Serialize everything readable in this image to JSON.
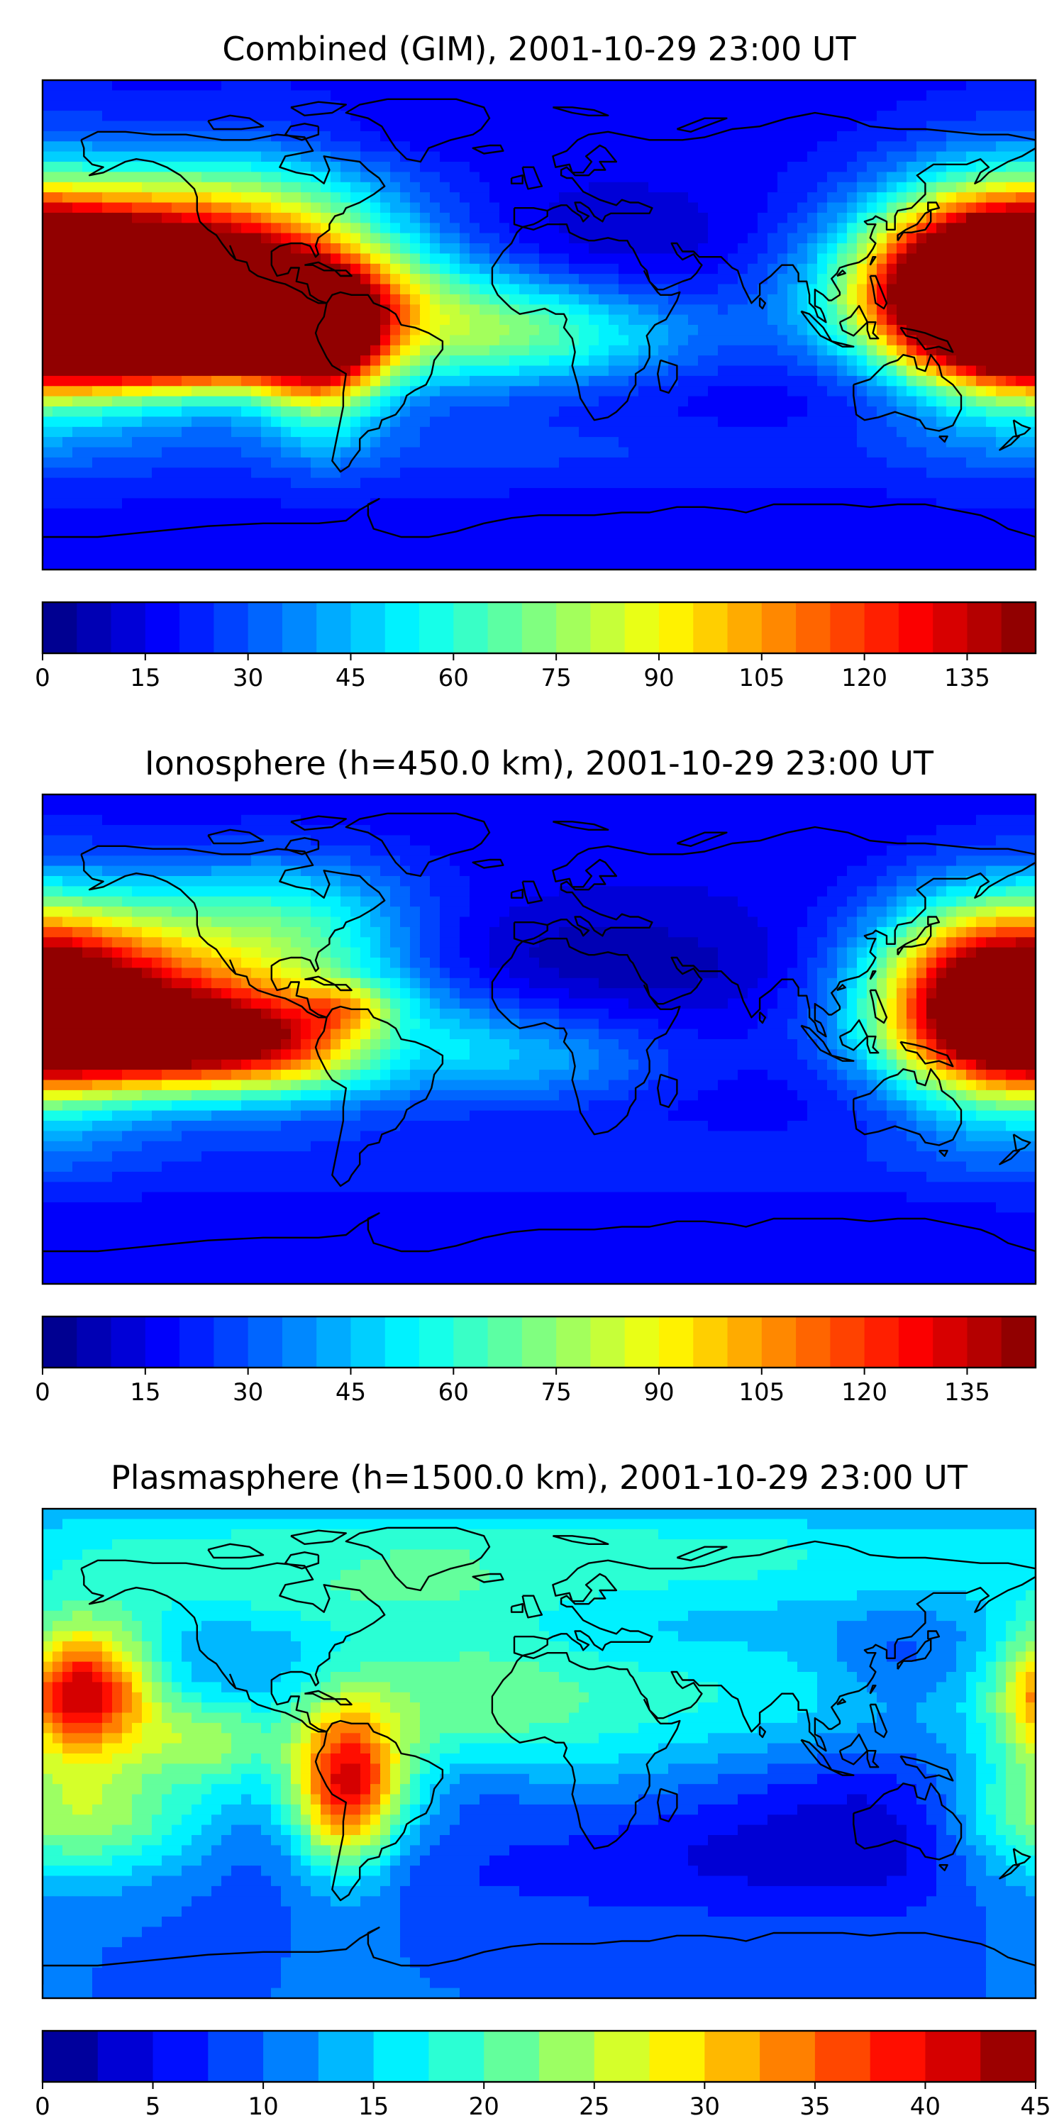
{
  "panels": [
    {
      "title": "Combined (GIM), 2001-10-29 23:00 UT",
      "colorbar": {
        "min": 0,
        "max": 145,
        "step": 5,
        "ticks": [
          "0",
          "15",
          "30",
          "45",
          "60",
          "75",
          "90",
          "105",
          "120",
          "135"
        ],
        "tick_values": [
          0,
          15,
          30,
          45,
          60,
          75,
          90,
          105,
          120,
          135
        ]
      },
      "field": {
        "base": 18,
        "blobs": [
          [
            -160,
            18,
            55,
            20,
            128
          ],
          [
            -145,
            3,
            50,
            14,
            118
          ],
          [
            -120,
            -3,
            40,
            15,
            72
          ],
          [
            175,
            10,
            30,
            28,
            98
          ],
          [
            150,
            15,
            22,
            22,
            40
          ],
          [
            -90,
            28,
            35,
            25,
            35
          ],
          [
            -40,
            0,
            55,
            16,
            42
          ],
          [
            -78,
            -12,
            15,
            20,
            60
          ],
          [
            -45,
            -2,
            14,
            10,
            -14
          ],
          [
            10,
            -5,
            35,
            12,
            20
          ],
          [
            35,
            25,
            55,
            18,
            -10
          ],
          [
            0,
            -45,
            160,
            10,
            10
          ],
          [
            -120,
            45,
            30,
            15,
            20
          ],
          [
            -60,
            70,
            40,
            8,
            -5
          ],
          [
            80,
            -35,
            70,
            15,
            -5
          ]
        ]
      }
    },
    {
      "title": "Ionosphere  (h=450.0 km), 2001-10-29 23:00 UT",
      "colorbar": {
        "min": 0,
        "max": 145,
        "step": 5,
        "ticks": [
          "0",
          "15",
          "30",
          "45",
          "60",
          "75",
          "90",
          "105",
          "120",
          "135"
        ],
        "tick_values": [
          0,
          15,
          30,
          45,
          60,
          75,
          90,
          105,
          120,
          135
        ]
      },
      "field": {
        "base": 16,
        "blobs": [
          [
            -160,
            20,
            48,
            20,
            82
          ],
          [
            -140,
            0,
            50,
            12,
            70
          ],
          [
            -110,
            -5,
            35,
            14,
            42
          ],
          [
            175,
            10,
            30,
            28,
            80
          ],
          [
            150,
            15,
            22,
            22,
            36
          ],
          [
            -85,
            28,
            30,
            22,
            28
          ],
          [
            -70,
            12,
            10,
            6,
            26
          ],
          [
            -40,
            0,
            55,
            16,
            22
          ],
          [
            -62,
            -3,
            10,
            8,
            -10
          ],
          [
            -45,
            -3,
            8,
            8,
            -10
          ],
          [
            20,
            25,
            55,
            15,
            -12
          ],
          [
            5,
            -10,
            30,
            10,
            12
          ],
          [
            -100,
            50,
            40,
            15,
            18
          ],
          [
            0,
            -45,
            160,
            10,
            8
          ]
        ]
      }
    },
    {
      "title": "Plasmasphere (h=1500.0 km), 2001-10-29 23:00 UT",
      "colorbar": {
        "min": 0,
        "max": 45,
        "step": 2.5,
        "ticks": [
          "0",
          "5",
          "10",
          "15",
          "20",
          "25",
          "30",
          "35",
          "40",
          "45"
        ],
        "tick_values": [
          0,
          5,
          10,
          15,
          20,
          25,
          30,
          35,
          40,
          45
        ]
      },
      "field": {
        "base": 10,
        "blobs": [
          [
            -165,
            22,
            18,
            18,
            30
          ],
          [
            -70,
            -12,
            14,
            22,
            28
          ],
          [
            -120,
            5,
            18,
            12,
            12
          ],
          [
            -160,
            -25,
            30,
            16,
            14
          ],
          [
            -30,
            15,
            35,
            30,
            8
          ],
          [
            60,
            20,
            80,
            20,
            8
          ],
          [
            130,
            -20,
            50,
            25,
            -6
          ],
          [
            -20,
            -10,
            18,
            12,
            -5
          ],
          [
            20,
            -40,
            110,
            15,
            -4
          ],
          [
            -100,
            60,
            60,
            12,
            7
          ],
          [
            60,
            65,
            90,
            10,
            6
          ],
          [
            -40,
            80,
            200,
            8,
            6
          ],
          [
            130,
            35,
            18,
            12,
            -4
          ],
          [
            170,
            -20,
            20,
            25,
            6
          ]
        ]
      }
    }
  ]
}
